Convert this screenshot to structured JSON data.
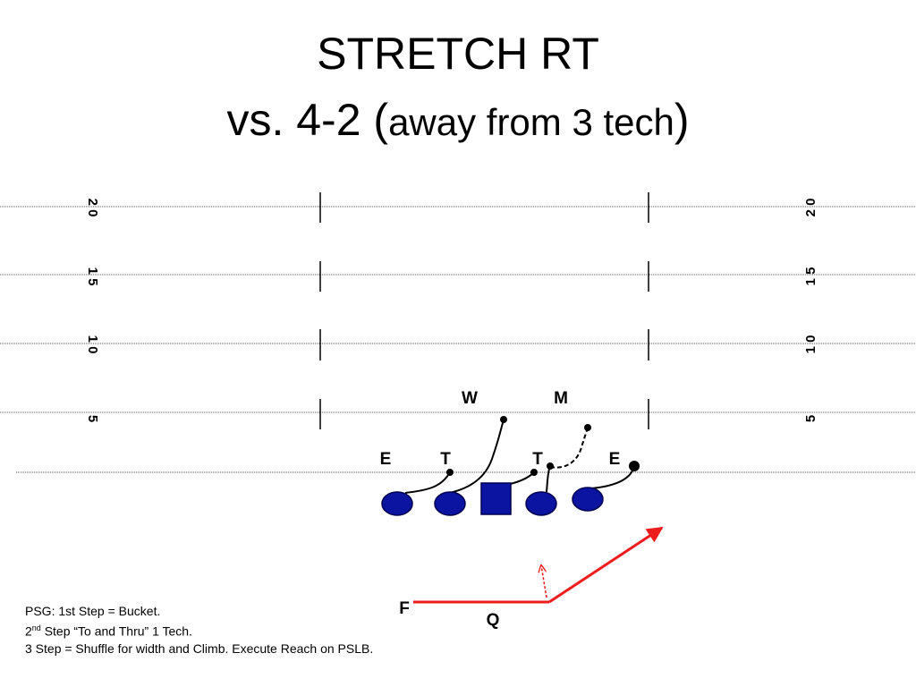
{
  "title": {
    "line1": "STRETCH RT",
    "line2_prefix": "vs. 4-2 (",
    "line2_paren": "away from 3 tech",
    "line2_suffix": ")"
  },
  "yard_markers": {
    "left": [
      "2 0",
      "1 5",
      "1 0",
      "5"
    ],
    "right": [
      "2 0",
      "1 5",
      "1 0",
      "5"
    ]
  },
  "defense_labels": {
    "w": "W",
    "m": "M",
    "e_left": "E",
    "t_left": "T",
    "t_right": "T",
    "e_right": "E"
  },
  "offense_labels": {
    "f": "F",
    "q": "Q"
  },
  "colors": {
    "player_fill": "#0a14a0",
    "player_stroke": "#000050",
    "route_red": "#ee1c1c",
    "line_black": "#000000"
  },
  "notes": {
    "line1": "PSG: 1st  Step = Bucket.",
    "line2_num": "2",
    "line2_sup": "nd",
    "line2_rest": " Step “To and Thru” 1 Tech.",
    "line3": "3 Step = Shuffle for width and Climb. Execute Reach on PSLB."
  }
}
